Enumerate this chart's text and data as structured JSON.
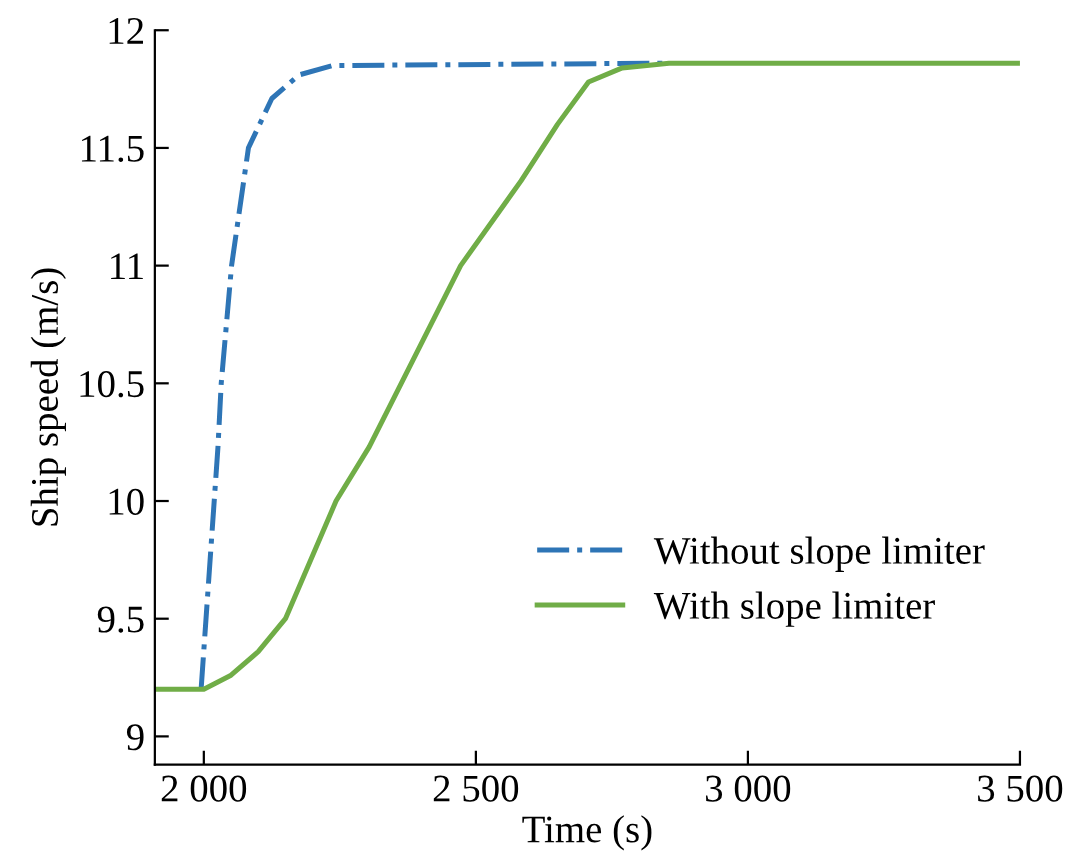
{
  "chart_data": {
    "type": "line",
    "xlabel": "Time (s)",
    "ylabel": "Ship speed (m/s)",
    "xlim": [
      1910,
      3500
    ],
    "ylim": [
      8.88,
      12
    ],
    "xticks": [
      {
        "value": 2000,
        "label": "2 000"
      },
      {
        "value": 2500,
        "label": "2 500"
      },
      {
        "value": 3000,
        "label": "3 000"
      },
      {
        "value": 3500,
        "label": "3 500"
      }
    ],
    "yticks": [
      9,
      9.5,
      10,
      10.5,
      11,
      11.5,
      12
    ],
    "grid": false,
    "legend": "bottom right",
    "marker": "none",
    "series": [
      {
        "name": "Without slope limiter",
        "color": "#2e75b6",
        "line_style": "dashdot",
        "x": [
          1995,
          2026,
          2032,
          2051,
          2082,
          2125,
          2175,
          2236,
          2843
        ],
        "values": [
          9.2,
          10.23,
          10.5,
          11,
          11.5,
          11.71,
          11.81,
          11.85,
          11.86
        ]
      },
      {
        "name": "With slope limiter",
        "color": "#70ad47",
        "line_style": "solid",
        "x": [
          1910,
          2000,
          2050,
          2100,
          2150,
          2243,
          2304,
          2472,
          2583,
          2650,
          2707,
          2769,
          2855,
          3500
        ],
        "values": [
          9.2,
          9.2,
          9.26,
          9.36,
          9.5,
          10,
          10.23,
          11,
          11.36,
          11.6,
          11.78,
          11.84,
          11.86,
          11.86
        ]
      }
    ]
  }
}
